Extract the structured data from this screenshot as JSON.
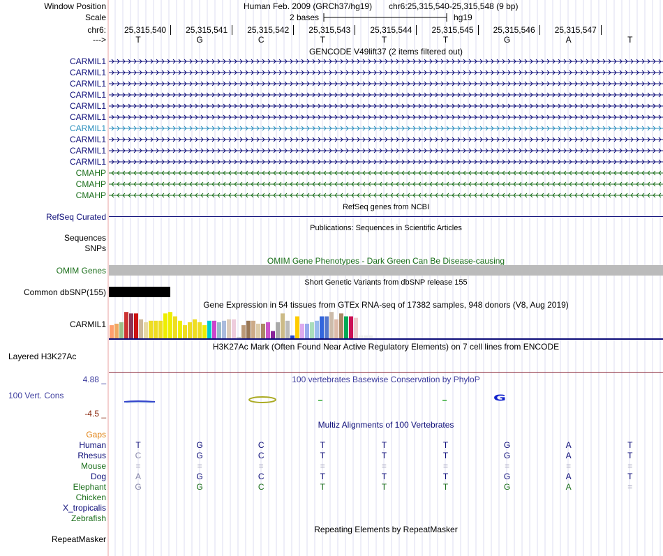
{
  "header": {
    "window_position_label": "Window Position",
    "scale_label": "Scale",
    "chrom_label": "chr6:",
    "strand_label": "--->",
    "assembly_text": "Human Feb. 2009 (GRCh37/hg19)",
    "position_text": "chr6:25,315,540-25,315,548 (9 bp)",
    "scale_text": "2 bases",
    "db_text": "hg19",
    "coords": [
      "25,315,540",
      "25,315,541",
      "25,315,542",
      "25,315,543",
      "25,315,544",
      "25,315,545",
      "25,315,546",
      "25,315,547"
    ],
    "bases": [
      "T",
      "G",
      "C",
      "T",
      "T",
      "T",
      "G",
      "A",
      "T"
    ]
  },
  "gencode": {
    "title": "GENCODE V49lift37 (2 items filtered out)",
    "tracks": [
      {
        "name": "CARMIL1",
        "strand": "+",
        "color": "#0c0c78"
      },
      {
        "name": "CARMIL1",
        "strand": "+",
        "color": "#0c0c78"
      },
      {
        "name": "CARMIL1",
        "strand": "+",
        "color": "#0c0c78"
      },
      {
        "name": "CARMIL1",
        "strand": "+",
        "color": "#0c0c78"
      },
      {
        "name": "CARMIL1",
        "strand": "+",
        "color": "#0c0c78"
      },
      {
        "name": "CARMIL1",
        "strand": "+",
        "color": "#0c0c78"
      },
      {
        "name": "CARMIL1",
        "strand": "+",
        "color": "#2b8fbd"
      },
      {
        "name": "CARMIL1",
        "strand": "+",
        "color": "#0c0c78"
      },
      {
        "name": "CARMIL1",
        "strand": "+",
        "color": "#0c0c78"
      },
      {
        "name": "CARMIL1",
        "strand": "+",
        "color": "#0c0c78"
      },
      {
        "name": "CMAHP",
        "strand": "-",
        "color": "#1a6e1a"
      },
      {
        "name": "CMAHP",
        "strand": "-",
        "color": "#1a6e1a"
      },
      {
        "name": "CMAHP",
        "strand": "-",
        "color": "#1a6e1a"
      }
    ]
  },
  "refseq": {
    "title": "RefSeq genes from NCBI",
    "label": "RefSeq Curated",
    "color": "#0c0c78"
  },
  "publications": {
    "title": "Publications: Sequences in Scientific Articles",
    "label1": "Sequences",
    "label2": "SNPs"
  },
  "omim": {
    "title": "OMIM Gene Phenotypes - Dark Green Can Be Disease-causing",
    "label": "OMIM Genes",
    "color": "#1a6e1a"
  },
  "dbsnp": {
    "title": "Short Genetic Variants from dbSNP release 155",
    "label": "Common dbSNP(155)"
  },
  "gtex": {
    "title": "Gene Expression in 54 tissues from GTEx RNA-seq of 17382 samples, 948 donors (V8, Aug 2019)",
    "label": "CARMIL1",
    "bars": [
      {
        "h": 0.45,
        "c": "#ff9f6e"
      },
      {
        "h": 0.5,
        "c": "#f0a860"
      },
      {
        "h": 0.55,
        "c": "#9cbf88"
      },
      {
        "h": 0.9,
        "c": "#cc3333"
      },
      {
        "h": 0.85,
        "c": "#8b3355"
      },
      {
        "h": 0.85,
        "c": "#cc1111"
      },
      {
        "h": 0.65,
        "c": "#ccb89a"
      },
      {
        "h": 0.55,
        "c": "#e6d8a4"
      },
      {
        "h": 0.6,
        "c": "#eedd22"
      },
      {
        "h": 0.6,
        "c": "#eedd22"
      },
      {
        "h": 0.6,
        "c": "#eedd22"
      },
      {
        "h": 0.85,
        "c": "#eeee00"
      },
      {
        "h": 0.9,
        "c": "#eeee00"
      },
      {
        "h": 0.75,
        "c": "#eedd22"
      },
      {
        "h": 0.6,
        "c": "#eeee00"
      },
      {
        "h": 0.45,
        "c": "#eedd22"
      },
      {
        "h": 0.55,
        "c": "#eedd22"
      },
      {
        "h": 0.65,
        "c": "#eedd22"
      },
      {
        "h": 0.55,
        "c": "#eedd22"
      },
      {
        "h": 0.45,
        "c": "#eeee00"
      },
      {
        "h": 0.6,
        "c": "#00cccc"
      },
      {
        "h": 0.6,
        "c": "#cc44cc"
      },
      {
        "h": 0.55,
        "c": "#99bbcc"
      },
      {
        "h": 0.6,
        "c": "#aabbdd"
      },
      {
        "h": 0.65,
        "c": "#ddccbb"
      },
      {
        "h": 0.65,
        "c": "#eeccdd"
      },
      {
        "h": 0.05,
        "c": "#cccccc"
      },
      {
        "h": 0.45,
        "c": "#bb9977"
      },
      {
        "h": 0.6,
        "c": "#997755"
      },
      {
        "h": 0.6,
        "c": "#ccaa88"
      },
      {
        "h": 0.5,
        "c": "#ddccaa"
      },
      {
        "h": 0.5,
        "c": "#aa8866"
      },
      {
        "h": 0.55,
        "c": "#cc55cc"
      },
      {
        "h": 0.25,
        "c": "#882299"
      },
      {
        "h": 0.55,
        "c": "#aaaaaa"
      },
      {
        "h": 0.85,
        "c": "#ccbb88"
      },
      {
        "h": 0.6,
        "c": "#bbbbbb"
      },
      {
        "h": 0.1,
        "c": "#2244cc"
      },
      {
        "h": 0.75,
        "c": "#ffcc00"
      },
      {
        "h": 0.5,
        "c": "#ddaaee"
      },
      {
        "h": 0.5,
        "c": "#99aaee"
      },
      {
        "h": 0.55,
        "c": "#aaddbb"
      },
      {
        "h": 0.6,
        "c": "#99bbee"
      },
      {
        "h": 0.75,
        "c": "#3366dd"
      },
      {
        "h": 0.75,
        "c": "#5577cc"
      },
      {
        "h": 0.9,
        "c": "#ccbbaa"
      },
      {
        "h": 0.65,
        "c": "#ddbbaa"
      },
      {
        "h": 0.85,
        "c": "#aa8866"
      },
      {
        "h": 0.75,
        "c": "#00aa55"
      },
      {
        "h": 0.75,
        "c": "#cc1155"
      },
      {
        "h": 0.7,
        "c": "#eecccc"
      },
      {
        "h": 0.1,
        "c": "#eeeeee"
      },
      {
        "h": 0.1,
        "c": "#eeeeee"
      },
      {
        "h": 0.1,
        "c": "#eeeeee"
      }
    ]
  },
  "h3k27ac": {
    "title": "H3K27Ac Mark (Often Found Near Active Regulatory Elements) on 7 cell lines from ENCODE",
    "label": "Layered H3K27Ac"
  },
  "conservation": {
    "title": "100 vertebrates Basewise Conservation by PhyloP",
    "label": "100 Vert. Cons",
    "ymax": "4.88 _",
    "ymin": "-4.5 _",
    "color": "#3d3d9e",
    "min_color": "#8b2a10"
  },
  "multiz": {
    "title": "Multiz Alignments of 100 Vertebrates",
    "gaps_label": "Gaps",
    "species": [
      {
        "name": "Human",
        "color": "#0c0c78",
        "bases": [
          "T",
          "G",
          "C",
          "T",
          "T",
          "T",
          "G",
          "A",
          "T"
        ],
        "first_color": "#0c0c78"
      },
      {
        "name": "Rhesus",
        "color": "#0c0c78",
        "bases": [
          "C",
          "G",
          "C",
          "T",
          "T",
          "T",
          "G",
          "A",
          "T"
        ],
        "first_color": "#8888aa"
      },
      {
        "name": "Mouse",
        "color": "#1a6e1a",
        "bases": [
          "=",
          "=",
          "=",
          "=",
          "=",
          "=",
          "=",
          "=",
          "="
        ],
        "first_color": "#8888aa"
      },
      {
        "name": "Dog",
        "color": "#0c0c78",
        "bases": [
          "A",
          "G",
          "C",
          "T",
          "T",
          "T",
          "G",
          "A",
          "T"
        ],
        "first_color": "#8888aa"
      },
      {
        "name": "Elephant",
        "color": "#1a6e1a",
        "bases": [
          "G",
          "G",
          "C",
          "T",
          "T",
          "T",
          "G",
          "A",
          "="
        ],
        "first_color": "#8888aa"
      },
      {
        "name": "Chicken",
        "color": "#1a6e1a",
        "bases": [],
        "first_color": "#1a6e1a"
      },
      {
        "name": "X_tropicalis",
        "color": "#0c0c78",
        "bases": [],
        "first_color": "#0c0c78"
      },
      {
        "name": "Zebrafish",
        "color": "#1a6e1a",
        "bases": [],
        "first_color": "#1a6e1a"
      }
    ]
  },
  "repeatmasker": {
    "title": "Repeating Elements by RepeatMasker",
    "label": "RepeatMasker"
  }
}
